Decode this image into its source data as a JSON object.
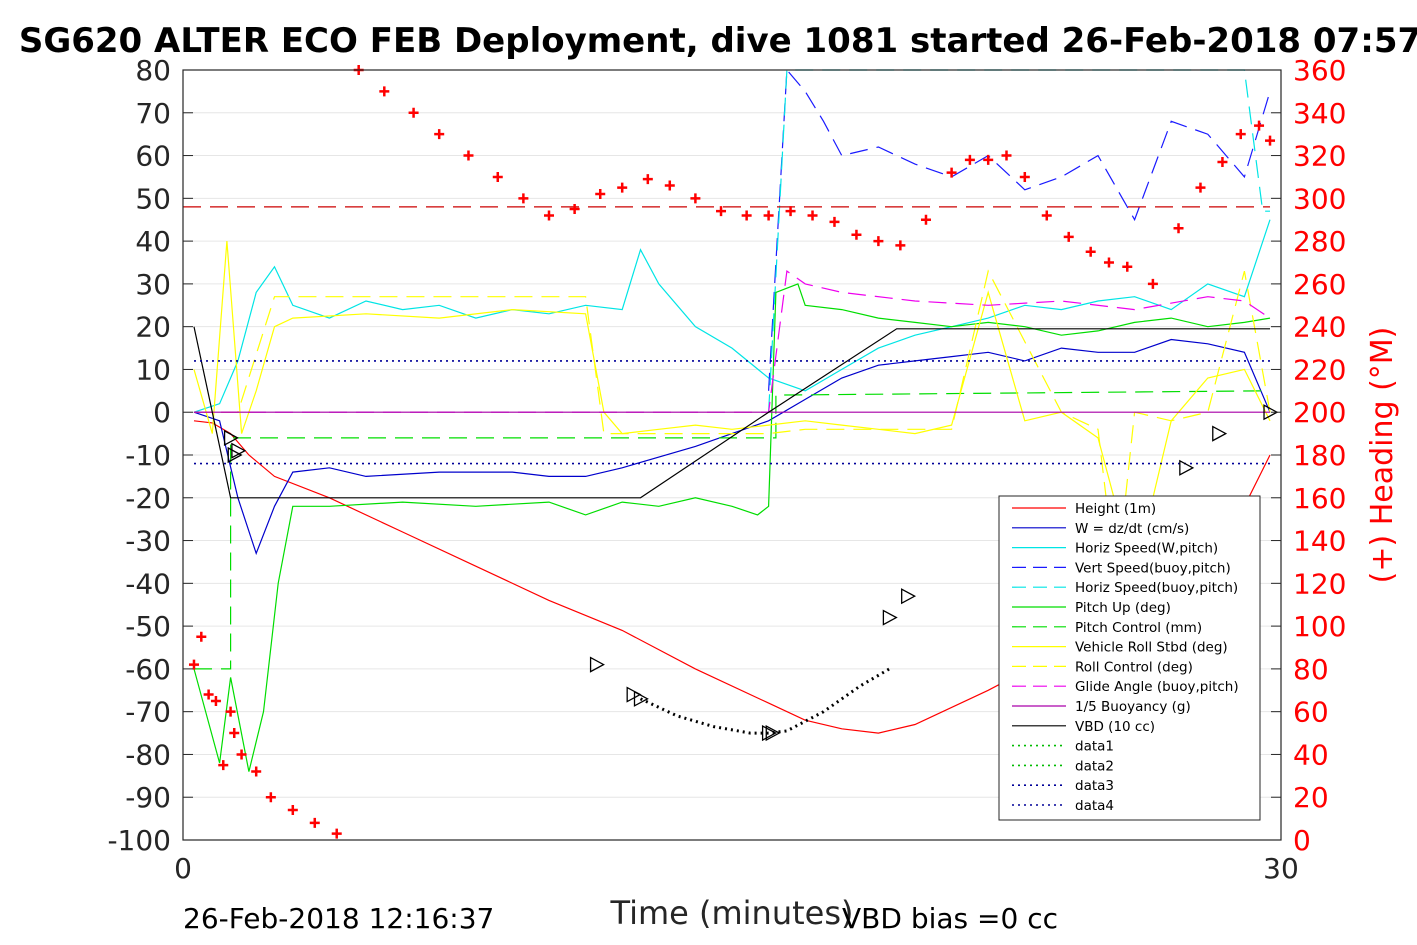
{
  "chart_data": {
    "type": "line",
    "title": "SG620 ALTER ECO FEB Deployment, dive 1081 started 26-Feb-2018 07:57",
    "xlabel": "Time (minutes)",
    "ylabel_right": "(+) Heading (°M)",
    "xlim": [
      0,
      30
    ],
    "ylim_left": [
      -100,
      80
    ],
    "ylim_right": [
      0,
      360
    ],
    "x_ticks": [
      "0",
      "30"
    ],
    "y_ticks_left": [
      "80",
      "70",
      "60",
      "50",
      "40",
      "30",
      "20",
      "10",
      "0",
      "-10",
      "-20",
      "-30",
      "-40",
      "-50",
      "-60",
      "-70",
      "-80",
      "-90",
      "-100"
    ],
    "y_ticks_right": [
      "360",
      "340",
      "320",
      "300",
      "280",
      "260",
      "240",
      "220",
      "200",
      "180",
      "160",
      "140",
      "120",
      "100",
      "80",
      "60",
      "40",
      "20",
      "0"
    ],
    "grid": true,
    "legend_position": "lower-right",
    "footer_left": "26-Feb-2018 12:16:37",
    "footer_right": "VBD bias =0 cc",
    "series": [
      {
        "name": "Height (1m)",
        "color": "#ff0000",
        "style": "solid",
        "x": [
          0.3,
          0.8,
          1.3,
          1.8,
          2.5,
          4,
          6,
          8,
          10,
          12,
          14,
          16,
          17,
          18,
          19,
          20,
          22,
          24,
          26,
          28,
          29,
          29.7
        ],
        "y": [
          -2,
          -2.5,
          -5,
          -10,
          -15,
          -20,
          -28,
          -36,
          -44,
          -51,
          -60,
          -68,
          -72,
          -74,
          -75,
          -73,
          -65,
          -56,
          -45,
          -33,
          -22,
          -10
        ]
      },
      {
        "name": "W = dz/dt (cm/s)",
        "color": "#0000cc",
        "style": "solid",
        "x": [
          0.3,
          1,
          1.5,
          2,
          2.5,
          3,
          4,
          5,
          7,
          9,
          10,
          11,
          12,
          14,
          15,
          16,
          17,
          18,
          19,
          20,
          21,
          22,
          23,
          24,
          25,
          26,
          27,
          28,
          29,
          29.7
        ],
        "y": [
          0,
          -2,
          -20,
          -33,
          -22,
          -14,
          -13,
          -15,
          -14,
          -14,
          -15,
          -15,
          -13,
          -8,
          -5,
          -2,
          3,
          8,
          11,
          12,
          13,
          14,
          12,
          15,
          14,
          14,
          17,
          16,
          14,
          0
        ]
      },
      {
        "name": "Horiz Speed(W,pitch)",
        "color": "#00e5e5",
        "style": "solid",
        "x": [
          0.3,
          1,
          1.5,
          2,
          2.5,
          3,
          4,
          5,
          6,
          7,
          8,
          9,
          10,
          11,
          12,
          12.5,
          13,
          14,
          15,
          16,
          17,
          18,
          19,
          20,
          21,
          22,
          23,
          24,
          25,
          26,
          27,
          28,
          29,
          29.7
        ],
        "y": [
          0,
          2,
          12,
          28,
          34,
          25,
          22,
          26,
          24,
          25,
          22,
          24,
          23,
          25,
          24,
          38,
          30,
          20,
          15,
          8,
          5,
          10,
          15,
          18,
          20,
          22,
          25,
          24,
          26,
          27,
          24,
          30,
          27,
          45
        ]
      },
      {
        "name": "Vert Speed(buoy,pitch)",
        "color": "#1a1aff",
        "style": "dash",
        "x": [
          16,
          16.5,
          17,
          17.5,
          18,
          19,
          20,
          21,
          22,
          23,
          24,
          25,
          26,
          27,
          28,
          29,
          29.7
        ],
        "y": [
          5,
          80,
          75,
          68,
          60,
          62,
          58,
          55,
          60,
          52,
          55,
          60,
          45,
          68,
          65,
          55,
          75
        ]
      },
      {
        "name": "Horiz Speed(buoy,pitch)",
        "color": "#00e5e5",
        "style": "dash",
        "x": [
          16,
          16.5,
          17,
          18,
          20,
          22,
          24,
          26,
          28,
          29,
          29.5,
          29.7
        ],
        "y": [
          0,
          80,
          80,
          80,
          80,
          80,
          80,
          80,
          80,
          80,
          47,
          47
        ]
      },
      {
        "name": "Pitch Up (deg)",
        "color": "#00dd00",
        "style": "solid",
        "x": [
          0.3,
          1,
          1.3,
          1.8,
          2.2,
          2.6,
          3,
          4,
          6,
          8,
          10,
          11,
          12,
          13,
          14,
          15,
          15.7,
          16,
          16.2,
          16.8,
          17,
          18,
          19,
          20,
          21,
          22,
          23,
          24,
          25,
          26,
          27,
          28,
          29,
          29.7
        ],
        "y": [
          -60,
          -82,
          -62,
          -84,
          -70,
          -40,
          -22,
          -22,
          -21,
          -22,
          -21,
          -24,
          -21,
          -22,
          -20,
          -22,
          -24,
          -22,
          28,
          30,
          25,
          24,
          22,
          21,
          20,
          21,
          20,
          18,
          19,
          21,
          22,
          20,
          21,
          22
        ]
      },
      {
        "name": "Pitch Control (mm)",
        "color": "#00dd00",
        "style": "dash",
        "x": [
          0.3,
          1.3,
          1.3,
          16.2,
          16.2,
          29.7
        ],
        "y": [
          -60,
          -60,
          -6,
          -6,
          4,
          5
        ]
      },
      {
        "name": "Vehicle Roll Stbd (deg)",
        "color": "#ffff00",
        "style": "solid",
        "x": [
          0.3,
          0.8,
          1.2,
          1.6,
          2,
          2.5,
          3,
          5,
          7,
          9,
          11,
          11.5,
          12,
          13,
          14,
          15,
          16,
          17,
          18,
          19,
          20,
          21,
          22,
          23,
          24,
          25,
          26,
          27,
          28,
          29,
          29.7
        ],
        "y": [
          10,
          -5,
          40,
          -5,
          5,
          20,
          22,
          23,
          22,
          24,
          23,
          0,
          -5,
          -4,
          -3,
          -4,
          -3,
          -2,
          -3,
          -4,
          -5,
          -3,
          28,
          -2,
          0,
          -6,
          -38,
          -2,
          8,
          10,
          -2
        ]
      },
      {
        "name": "Roll Control (deg)",
        "color": "#ffff00",
        "style": "dash",
        "x": [
          0.3,
          1.5,
          2.5,
          11,
          11.5,
          16,
          17,
          21,
          22,
          24,
          25,
          25.5,
          26,
          27,
          28,
          29,
          29.7
        ],
        "y": [
          0,
          0,
          27,
          27,
          -5,
          -5,
          -4,
          -4,
          33,
          0,
          -4,
          -40,
          0,
          -2,
          0,
          33,
          0
        ]
      },
      {
        "name": "Glide Angle (buoy,pitch)",
        "color": "#ee00ee",
        "style": "dash",
        "x": [
          0.3,
          16,
          16.5,
          17,
          18,
          20,
          22,
          24,
          26,
          28,
          29,
          29.7
        ],
        "y": [
          0,
          0,
          33,
          30,
          28,
          26,
          25,
          26,
          24,
          27,
          26,
          22
        ]
      },
      {
        "name": "1/5 Buoyancy (g)",
        "color": "#aa00aa",
        "style": "solid",
        "x": [
          0.3,
          16,
          29.7
        ],
        "y": [
          0,
          0,
          0
        ]
      },
      {
        "name": "VBD (10 cc)",
        "color": "#000000",
        "style": "solid",
        "x": [
          0.3,
          1.3,
          12.5,
          16,
          19.5,
          29.7
        ],
        "y": [
          20,
          -20,
          -20,
          0,
          19.5,
          19.5
        ]
      },
      {
        "name": "data1",
        "color": "#00bb00",
        "style": "dot",
        "x": [],
        "y": []
      },
      {
        "name": "data2",
        "color": "#00bb00",
        "style": "dot",
        "x": [],
        "y": []
      },
      {
        "name": "data3",
        "color": "#000099",
        "style": "dot",
        "x": [
          0.3,
          29.7
        ],
        "y": [
          12,
          12
        ]
      },
      {
        "name": "data4",
        "color": "#000099",
        "style": "dot",
        "x": [
          0.3,
          29.7
        ],
        "y": [
          -12,
          -12
        ]
      }
    ],
    "heading": {
      "name": "Heading",
      "axis": "right",
      "color": "#ff0000",
      "marker": "+",
      "x": [
        0.3,
        0.5,
        0.7,
        0.9,
        1.1,
        1.3,
        1.4,
        1.6,
        2.0,
        2.4,
        3.0,
        3.6,
        4.2,
        4.8,
        5.5,
        6.3,
        7.0,
        7.8,
        8.6,
        9.3,
        10.0,
        10.7,
        11.4,
        12.0,
        12.7,
        13.3,
        14.0,
        14.7,
        15.4,
        16.0,
        16.6,
        17.2,
        17.8,
        18.4,
        19.0,
        19.6,
        20.3,
        21.0,
        21.5,
        22.0,
        22.5,
        23.0,
        23.6,
        24.2,
        24.8,
        25.3,
        25.8,
        26.5,
        27.2,
        27.8,
        28.4,
        28.9,
        29.4,
        29.7
      ],
      "y": [
        82,
        95,
        68,
        65,
        35,
        60,
        50,
        40,
        32,
        20,
        14,
        8,
        3,
        360,
        350,
        340,
        330,
        320,
        310,
        300,
        292,
        295,
        302,
        305,
        309,
        306,
        300,
        294,
        292,
        292,
        294,
        292,
        289,
        283,
        280,
        278,
        290,
        312,
        318,
        318,
        320,
        310,
        292,
        282,
        275,
        270,
        268,
        260,
        286,
        305,
        317,
        330,
        334,
        327
      ]
    },
    "heading_reference": {
      "name": "mean heading",
      "value": 296,
      "axis": "right",
      "color": "#cc0000",
      "style": "dash"
    },
    "triangle_markers": {
      "color": "#000000",
      "x": [
        1.3,
        1.5,
        1.4,
        11.3,
        12.3,
        12.5,
        16.0,
        16.1,
        19.3,
        19.8,
        24.5,
        25.3,
        27.4,
        28.3,
        29.7
      ],
      "y": [
        -6,
        -9,
        -10,
        -59,
        -66,
        -67,
        -75,
        -75,
        -48,
        -43,
        -31,
        -26,
        -13,
        -5,
        0
      ]
    },
    "dotted_curve": {
      "color": "#000000",
      "x": [
        12.5,
        13.5,
        14.5,
        15.5,
        16.0,
        16.5,
        17.5,
        18.5,
        19.3
      ],
      "y": [
        -67,
        -71,
        -73.5,
        -75,
        -75,
        -74.5,
        -70,
        -64,
        -60
      ]
    }
  }
}
